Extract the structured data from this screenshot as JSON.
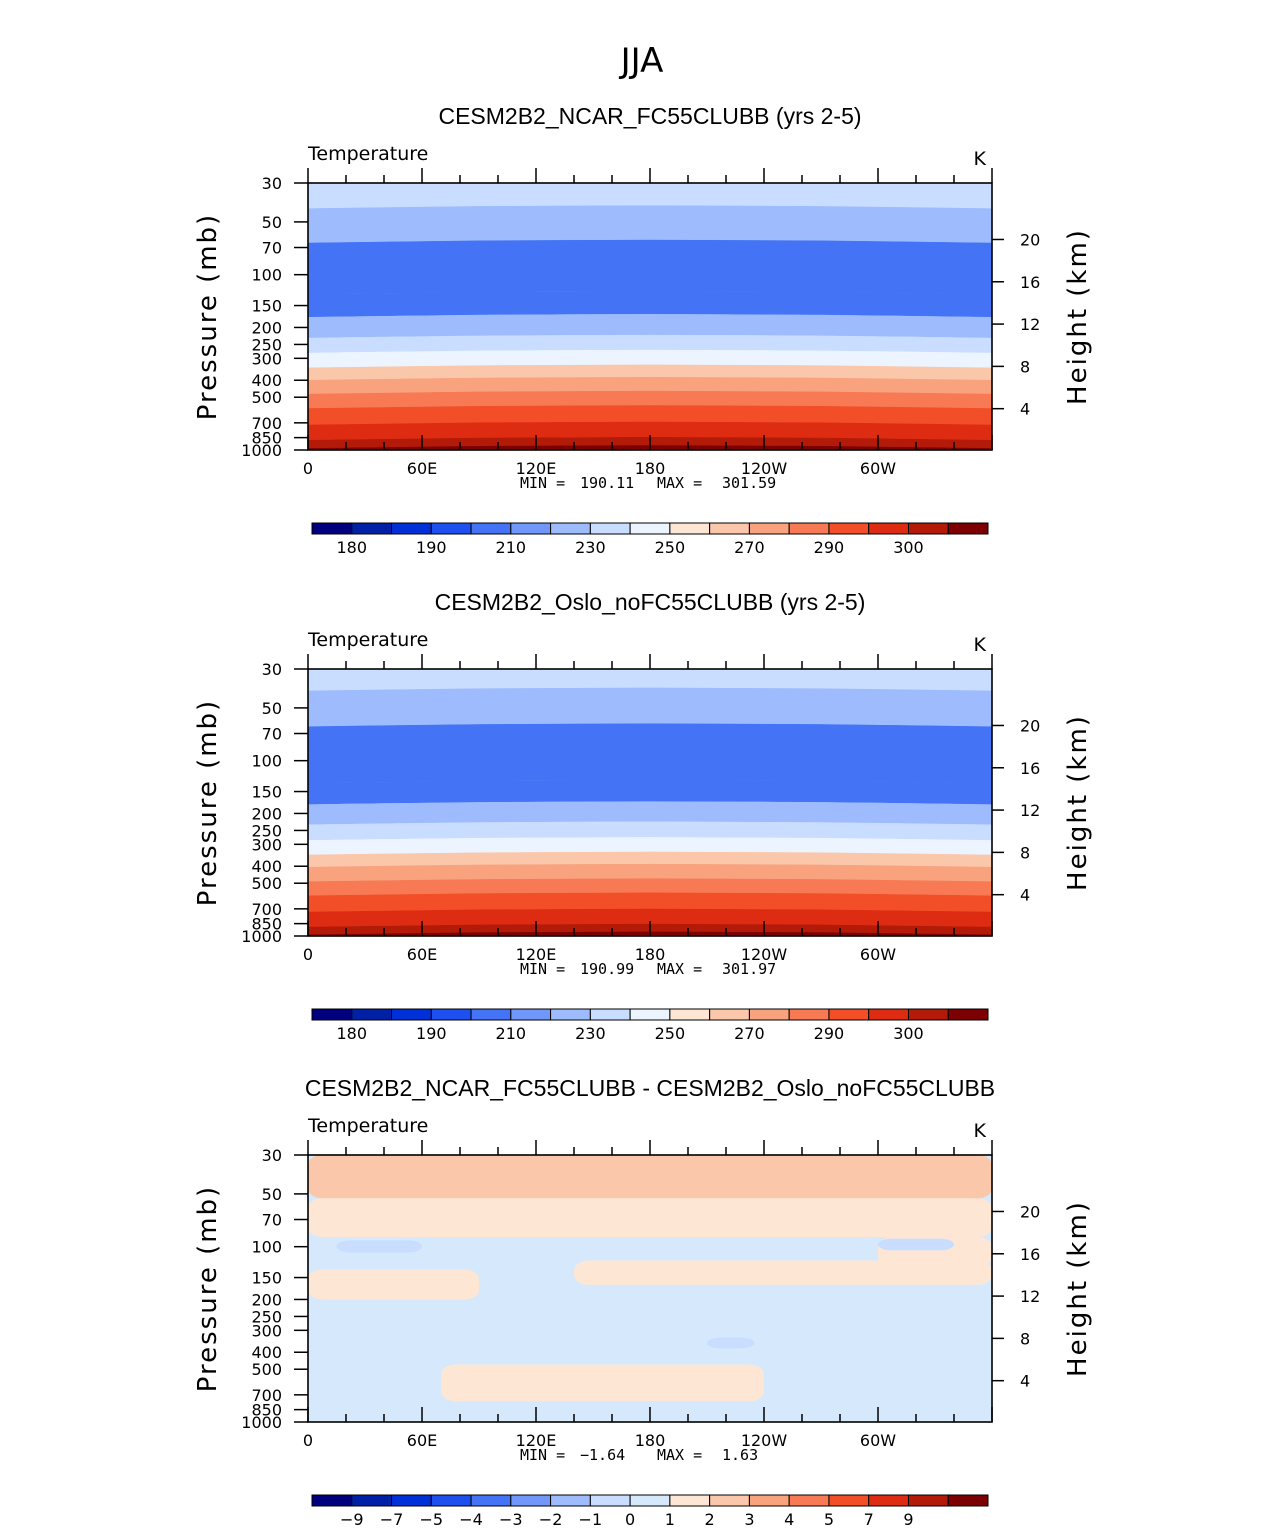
{
  "page": {
    "title": "JJA"
  },
  "colors": {
    "temperature_levels": [
      "#00007f",
      "#0020a6",
      "#0030d8",
      "#1e50f0",
      "#4474f5",
      "#7197fa",
      "#9ebcfd",
      "#c8ddff",
      "#ecf4ff",
      "#fde7d4",
      "#fbc7aa",
      "#f9a27e",
      "#f77a55",
      "#f24e28",
      "#de2c12",
      "#b41a08",
      "#7c0001"
    ],
    "diff_levels": [
      "#00007f",
      "#0020a6",
      "#0030d8",
      "#1e50f0",
      "#4474f5",
      "#7197fa",
      "#9ebcfd",
      "#c8ddff",
      "#d6e8fb",
      "#fde7d4",
      "#fbc7aa",
      "#f9a27e",
      "#f77a55",
      "#f24e28",
      "#de2c12",
      "#b41a08",
      "#7c0001"
    ]
  },
  "chart_data": [
    {
      "type": "heatmap",
      "kind": "temperature",
      "title": "CESM2B2_NCAR_FC55CLUBB (yrs 2-5)",
      "left_label": "Temperature",
      "right_label": "K",
      "ylabel": "Pressure (mb)",
      "ylabel_right": "Height (km)",
      "x_ticks": [
        "0",
        "60E",
        "120E",
        "180",
        "120W",
        "60W"
      ],
      "x_range": [
        0,
        360
      ],
      "y_ticks": [
        "30",
        "50",
        "70",
        "100",
        "150",
        "200",
        "250",
        "300",
        "400",
        "500",
        "700",
        "850",
        "1000"
      ],
      "y_range": [
        30,
        1000
      ],
      "height_ticks": [
        "20",
        "16",
        "12",
        "8",
        "4"
      ],
      "stats": {
        "min_label": "MIN =",
        "min": "190.11",
        "max_label": "MAX =",
        "max": "301.59"
      },
      "colorbar_labels": [
        "180",
        "190",
        "210",
        "230",
        "250",
        "270",
        "290",
        "300"
      ],
      "boundaries": [
        {
          "p": 30,
          "v": 230
        },
        {
          "p": 42,
          "v": 220
        },
        {
          "p": 66,
          "v": 210
        },
        {
          "p": 130,
          "v": 210
        },
        {
          "p": 175,
          "v": 220
        },
        {
          "p": 230,
          "v": 230
        },
        {
          "p": 280,
          "v": 240
        },
        {
          "p": 340,
          "v": 250
        },
        {
          "p": 400,
          "v": 260
        },
        {
          "p": 480,
          "v": 270
        },
        {
          "p": 580,
          "v": 275
        },
        {
          "p": 720,
          "v": 280
        },
        {
          "p": 880,
          "v": 290
        },
        {
          "p": 980,
          "v": 300
        }
      ]
    },
    {
      "type": "heatmap",
      "kind": "temperature",
      "title": "CESM2B2_Oslo_noFC55CLUBB (yrs 2-5)",
      "left_label": "Temperature",
      "right_label": "K",
      "ylabel": "Pressure (mb)",
      "ylabel_right": "Height (km)",
      "x_ticks": [
        "0",
        "60E",
        "120E",
        "180",
        "120W",
        "60W"
      ],
      "x_range": [
        0,
        360
      ],
      "y_ticks": [
        "30",
        "50",
        "70",
        "100",
        "150",
        "200",
        "250",
        "300",
        "400",
        "500",
        "700",
        "850",
        "1000"
      ],
      "y_range": [
        30,
        1000
      ],
      "height_ticks": [
        "20",
        "16",
        "12",
        "8",
        "4"
      ],
      "stats": {
        "min_label": "MIN =",
        "min": "190.99",
        "max_label": "MAX =",
        "max": "301.97"
      },
      "colorbar_labels": [
        "180",
        "190",
        "210",
        "230",
        "250",
        "270",
        "290",
        "300"
      ],
      "boundaries": [
        {
          "p": 30,
          "v": 230
        },
        {
          "p": 40,
          "v": 220
        },
        {
          "p": 64,
          "v": 210
        },
        {
          "p": 135,
          "v": 210
        },
        {
          "p": 178,
          "v": 220
        },
        {
          "p": 232,
          "v": 230
        },
        {
          "p": 285,
          "v": 240
        },
        {
          "p": 345,
          "v": 250
        },
        {
          "p": 405,
          "v": 260
        },
        {
          "p": 490,
          "v": 270
        },
        {
          "p": 590,
          "v": 275
        },
        {
          "p": 730,
          "v": 280
        },
        {
          "p": 890,
          "v": 290
        },
        {
          "p": 985,
          "v": 300
        }
      ]
    },
    {
      "type": "heatmap",
      "kind": "difference",
      "title": "CESM2B2_NCAR_FC55CLUBB - CESM2B2_Oslo_noFC55CLUBB",
      "left_label": "Temperature",
      "right_label": "K",
      "ylabel": "Pressure (mb)",
      "ylabel_right": "Height (km)",
      "x_ticks": [
        "0",
        "60E",
        "120E",
        "180",
        "120W",
        "60W"
      ],
      "x_range": [
        0,
        360
      ],
      "y_ticks": [
        "30",
        "50",
        "70",
        "100",
        "150",
        "200",
        "250",
        "300",
        "400",
        "500",
        "700",
        "850",
        "1000"
      ],
      "y_range": [
        30,
        1000
      ],
      "height_ticks": [
        "20",
        "16",
        "12",
        "8",
        "4"
      ],
      "stats": {
        "min_label": "MIN =",
        "min": "−1.64",
        "max_label": "MAX =",
        "max": "1.63"
      },
      "colorbar_labels": [
        "−9",
        "−7",
        "−5",
        "−4",
        "−3",
        "−2",
        "−1",
        "0",
        "1",
        "2",
        "3",
        "4",
        "5",
        "7",
        "9"
      ],
      "regions": [
        {
          "level": 10,
          "lon": [
            0,
            360
          ],
          "p": [
            30,
            53
          ]
        },
        {
          "level": 9,
          "lon": [
            0,
            360
          ],
          "p": [
            53,
            88
          ]
        },
        {
          "level": 9,
          "lon": [
            0,
            90
          ],
          "p": [
            135,
            200
          ]
        },
        {
          "level": 9,
          "lon": [
            140,
            360
          ],
          "p": [
            120,
            165
          ]
        },
        {
          "level": 9,
          "lon": [
            300,
            360
          ],
          "p": [
            88,
            130
          ]
        },
        {
          "level": 9,
          "lon": [
            70,
            240
          ],
          "p": [
            470,
            760
          ]
        },
        {
          "level": 7,
          "lon": [
            15,
            60
          ],
          "p": [
            92,
            108
          ]
        },
        {
          "level": 7,
          "lon": [
            210,
            235
          ],
          "p": [
            330,
            380
          ]
        },
        {
          "level": 7,
          "lon": [
            300,
            340
          ],
          "p": [
            90,
            105
          ]
        }
      ]
    }
  ]
}
